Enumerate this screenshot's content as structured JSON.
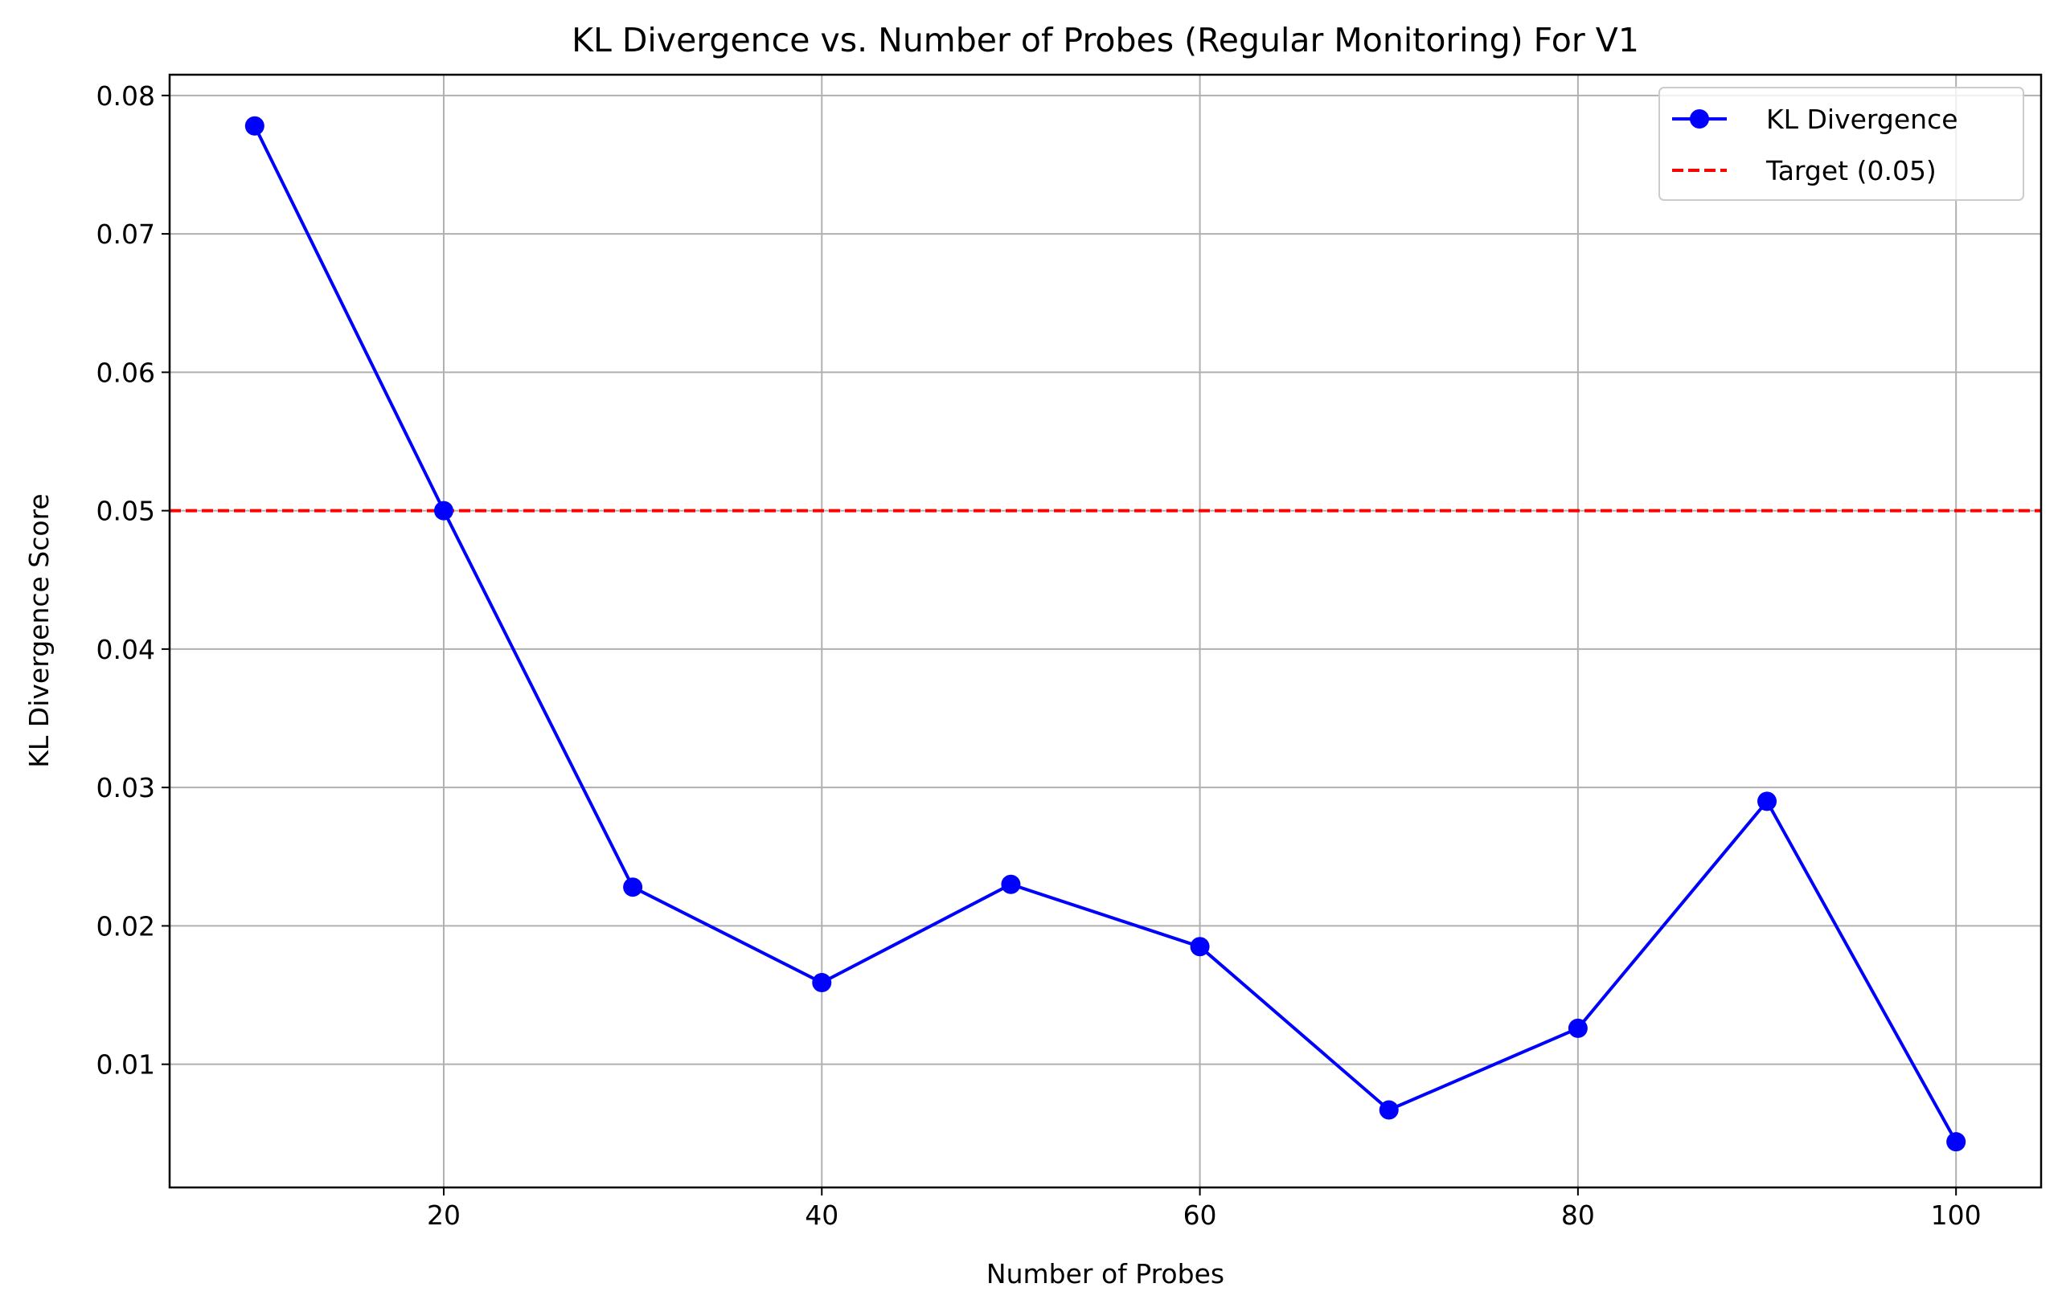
{
  "chart_data": {
    "type": "line",
    "title": "KL Divergence vs. Number of Probes (Regular Monitoring) For V1",
    "xlabel": "Number of Probes",
    "ylabel": "KL Divergence Score",
    "xlim": [
      5.5,
      104.5
    ],
    "ylim": [
      0.0011,
      0.0815
    ],
    "xticks": [
      20,
      40,
      60,
      80,
      100
    ],
    "yticks": [
      0.01,
      0.02,
      0.03,
      0.04,
      0.05,
      0.06,
      0.07,
      0.08
    ],
    "xtick_labels": [
      "20",
      "40",
      "60",
      "80",
      "100"
    ],
    "ytick_labels": [
      "0.01",
      "0.02",
      "0.03",
      "0.04",
      "0.05",
      "0.06",
      "0.07",
      "0.08"
    ],
    "grid": true,
    "legend_position": "top-right",
    "series": [
      {
        "name": "KL Divergence",
        "color": "#0000ff",
        "marker": "circle",
        "x": [
          10,
          20,
          30,
          40,
          50,
          60,
          70,
          80,
          90,
          100
        ],
        "y": [
          0.0778,
          0.05,
          0.0228,
          0.0159,
          0.023,
          0.0185,
          0.0067,
          0.0126,
          0.029,
          0.0044
        ]
      }
    ],
    "reference_lines": [
      {
        "name": "Target (0.05)",
        "orientation": "horizontal",
        "value": 0.05,
        "color": "#ff0000",
        "style": "dashed"
      }
    ]
  }
}
